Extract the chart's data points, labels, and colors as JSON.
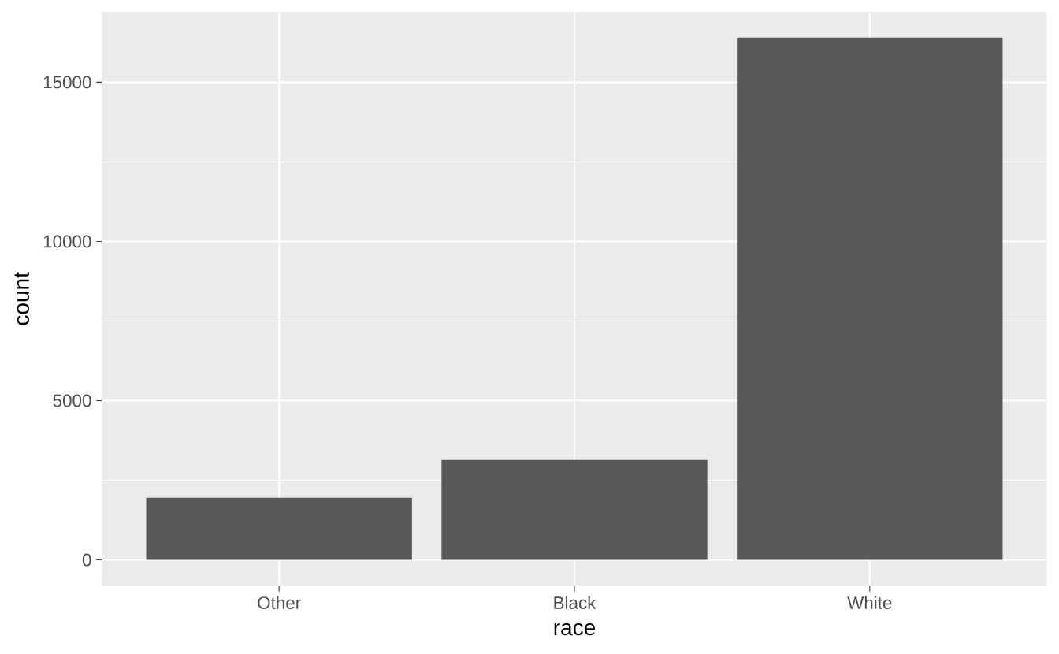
{
  "chart_data": {
    "type": "bar",
    "xlabel": "race",
    "ylabel": "count",
    "categories": [
      "Other",
      "Black",
      "White"
    ],
    "values": [
      1950,
      3140,
      16400
    ],
    "color": "#595959",
    "ylim": [
      -820,
      17215
    ],
    "yticks": [
      0,
      5000,
      10000,
      15000
    ],
    "grid": true
  }
}
